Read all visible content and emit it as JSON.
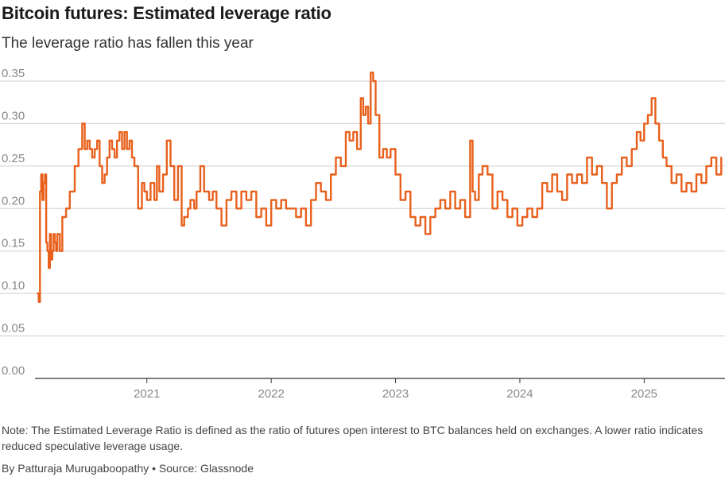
{
  "title": "Bitcoin futures: Estimated leverage ratio",
  "subtitle": "The leverage ratio has fallen this year",
  "note": "Note: The Estimated Leverage Ratio is defined as the ratio of futures open interest to BTC balances held on exchanges. A lower ratio indicates reduced speculative leverage usage.",
  "byline": "By Patturaja Murugaboopathy",
  "source": "Source: Glassnode",
  "separator": "•",
  "colors": {
    "line": "#e8601c",
    "grid": "#cfcfcf",
    "axis": "#333333",
    "tick": "#888888"
  },
  "chart_data": {
    "type": "line",
    "title": "Bitcoin futures: Estimated leverage ratio",
    "xlabel": "",
    "ylabel": "",
    "xlim": [
      2020.1,
      2025.65
    ],
    "ylim": [
      0,
      0.35
    ],
    "yticks": [
      0,
      0.05,
      0.1,
      0.15,
      0.2,
      0.25,
      0.3,
      0.35
    ],
    "ytick_labels": [
      "0.00",
      "0.05",
      "0.10",
      "0.15",
      "0.20",
      "0.25",
      "0.30",
      "0.35"
    ],
    "xticks": [
      2021,
      2022,
      2023,
      2024,
      2025
    ],
    "xtick_labels": [
      "2021",
      "2022",
      "2023",
      "2024",
      "2025"
    ],
    "grid": true,
    "series": [
      {
        "name": "Estimated leverage ratio",
        "x": [
          2020.12,
          2020.13,
          2020.14,
          2020.15,
          2020.16,
          2020.17,
          2020.18,
          2020.19,
          2020.2,
          2020.21,
          2020.22,
          2020.23,
          2020.24,
          2020.25,
          2020.26,
          2020.27,
          2020.28,
          2020.3,
          2020.32,
          2020.35,
          2020.38,
          2020.4,
          2020.42,
          2020.45,
          2020.48,
          2020.5,
          2020.52,
          2020.54,
          2020.56,
          2020.58,
          2020.6,
          2020.62,
          2020.64,
          2020.66,
          2020.68,
          2020.7,
          2020.72,
          2020.74,
          2020.76,
          2020.78,
          2020.8,
          2020.82,
          2020.84,
          2020.86,
          2020.88,
          2020.9,
          2020.93,
          2020.96,
          2020.98,
          2021.0,
          2021.03,
          2021.06,
          2021.08,
          2021.1,
          2021.13,
          2021.16,
          2021.19,
          2021.22,
          2021.25,
          2021.28,
          2021.3,
          2021.33,
          2021.35,
          2021.38,
          2021.4,
          2021.43,
          2021.46,
          2021.5,
          2021.53,
          2021.56,
          2021.6,
          2021.64,
          2021.68,
          2021.72,
          2021.76,
          2021.8,
          2021.84,
          2021.88,
          2021.92,
          2021.96,
          2022.0,
          2022.04,
          2022.08,
          2022.12,
          2022.16,
          2022.2,
          2022.24,
          2022.28,
          2022.32,
          2022.36,
          2022.4,
          2022.44,
          2022.48,
          2022.52,
          2022.56,
          2022.6,
          2022.63,
          2022.66,
          2022.69,
          2022.72,
          2022.74,
          2022.76,
          2022.78,
          2022.8,
          2022.82,
          2022.84,
          2022.87,
          2022.9,
          2022.93,
          2022.96,
          2023.0,
          2023.04,
          2023.08,
          2023.12,
          2023.16,
          2023.2,
          2023.24,
          2023.28,
          2023.32,
          2023.36,
          2023.4,
          2023.44,
          2023.48,
          2023.52,
          2023.56,
          2023.6,
          2023.62,
          2023.64,
          2023.67,
          2023.7,
          2023.74,
          2023.78,
          2023.82,
          2023.86,
          2023.9,
          2023.94,
          2023.98,
          2024.02,
          2024.06,
          2024.1,
          2024.14,
          2024.18,
          2024.22,
          2024.26,
          2024.3,
          2024.34,
          2024.38,
          2024.42,
          2024.46,
          2024.5,
          2024.54,
          2024.58,
          2024.62,
          2024.66,
          2024.7,
          2024.74,
          2024.78,
          2024.82,
          2024.86,
          2024.9,
          2024.94,
          2024.97,
          2025.0,
          2025.03,
          2025.06,
          2025.09,
          2025.12,
          2025.15,
          2025.18,
          2025.22,
          2025.26,
          2025.3,
          2025.34,
          2025.38,
          2025.42,
          2025.46,
          2025.5,
          2025.54,
          2025.58,
          2025.62
        ],
        "values": [
          0.1,
          0.09,
          0.22,
          0.24,
          0.21,
          0.23,
          0.24,
          0.16,
          0.15,
          0.13,
          0.17,
          0.14,
          0.15,
          0.17,
          0.16,
          0.15,
          0.17,
          0.15,
          0.19,
          0.2,
          0.22,
          0.22,
          0.25,
          0.27,
          0.3,
          0.27,
          0.28,
          0.27,
          0.26,
          0.27,
          0.28,
          0.25,
          0.23,
          0.24,
          0.26,
          0.28,
          0.27,
          0.26,
          0.28,
          0.29,
          0.27,
          0.29,
          0.27,
          0.28,
          0.26,
          0.25,
          0.2,
          0.23,
          0.22,
          0.21,
          0.23,
          0.21,
          0.25,
          0.22,
          0.24,
          0.28,
          0.25,
          0.21,
          0.25,
          0.18,
          0.19,
          0.2,
          0.21,
          0.2,
          0.22,
          0.25,
          0.22,
          0.21,
          0.22,
          0.2,
          0.18,
          0.21,
          0.22,
          0.2,
          0.22,
          0.21,
          0.22,
          0.19,
          0.2,
          0.18,
          0.21,
          0.2,
          0.21,
          0.2,
          0.2,
          0.19,
          0.2,
          0.18,
          0.21,
          0.23,
          0.22,
          0.21,
          0.24,
          0.26,
          0.25,
          0.29,
          0.28,
          0.29,
          0.27,
          0.33,
          0.31,
          0.32,
          0.3,
          0.36,
          0.35,
          0.31,
          0.26,
          0.27,
          0.26,
          0.27,
          0.24,
          0.21,
          0.22,
          0.19,
          0.18,
          0.19,
          0.17,
          0.19,
          0.2,
          0.21,
          0.2,
          0.22,
          0.2,
          0.21,
          0.19,
          0.28,
          0.22,
          0.21,
          0.24,
          0.25,
          0.24,
          0.2,
          0.22,
          0.21,
          0.19,
          0.2,
          0.18,
          0.19,
          0.2,
          0.19,
          0.2,
          0.23,
          0.22,
          0.24,
          0.22,
          0.21,
          0.24,
          0.23,
          0.24,
          0.23,
          0.26,
          0.24,
          0.25,
          0.23,
          0.2,
          0.23,
          0.24,
          0.26,
          0.25,
          0.27,
          0.29,
          0.28,
          0.3,
          0.31,
          0.33,
          0.3,
          0.28,
          0.26,
          0.25,
          0.23,
          0.24,
          0.22,
          0.23,
          0.22,
          0.24,
          0.23,
          0.25,
          0.26,
          0.24,
          0.26
        ]
      }
    ]
  }
}
